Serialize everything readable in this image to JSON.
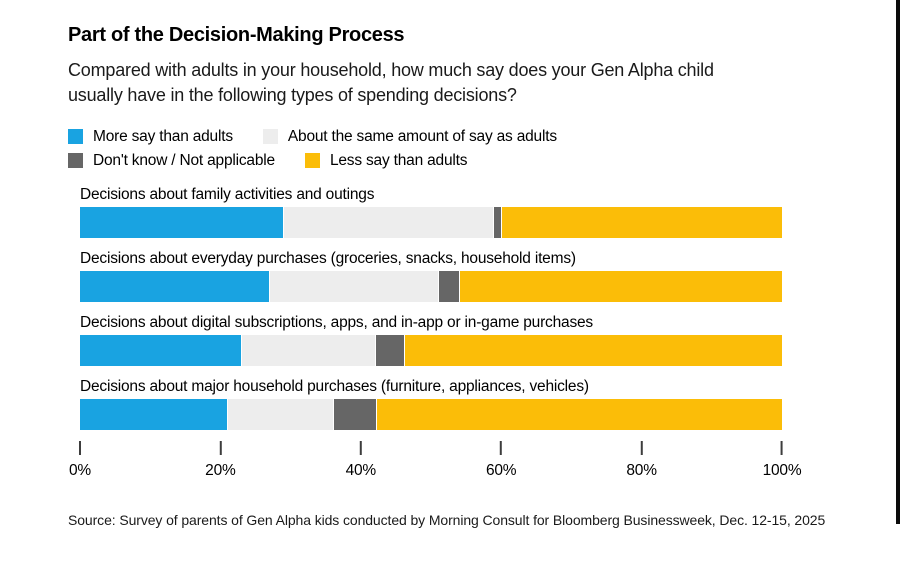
{
  "title": "Part of the Decision-Making Process",
  "subtitle": "Compared with adults in your household, how much say does your Gen Alpha child usually have in the following types of spending decisions?",
  "source": "Source: Survey of parents of Gen Alpha kids conducted by Morning Consult for Bloomberg Businessweek, Dec. 12-15, 2025",
  "colors": {
    "more": "#19a3e1",
    "same": "#ededed",
    "dont_know": "#666666",
    "less": "#fbbd08",
    "tick": "#3d3d3d",
    "text": "#000000",
    "background": "#ffffff"
  },
  "legend": {
    "rows": [
      [
        {
          "label": "More say than adults",
          "color_key": "more"
        },
        {
          "label": "About the same amount of say as adults",
          "color_key": "same"
        }
      ],
      [
        {
          "label": "Don't know / Not applicable",
          "color_key": "dont_know"
        },
        {
          "label": "Less say than adults",
          "color_key": "less"
        }
      ]
    ]
  },
  "chart_data": {
    "type": "bar",
    "stacked": true,
    "orientation": "horizontal",
    "unit": "%",
    "title": "Part of the Decision-Making Process",
    "xlabel": "",
    "ylabel": "",
    "xlim": [
      0,
      100
    ],
    "grid": false,
    "legend_position": "top",
    "categories": [
      "Decisions about family activities and outings",
      "Decisions about everyday purchases (groceries, snacks, household items)",
      "Decisions about digital subscriptions, apps, and in-app or in-game purchases",
      "Decisions about major household purchases (furniture, appliances, vehicles)"
    ],
    "series": [
      {
        "name": "More say than adults",
        "color": "#19a3e1",
        "values": [
          29,
          27,
          23,
          21
        ]
      },
      {
        "name": "About the same amount of say as adults",
        "color": "#ededed",
        "values": [
          30,
          24,
          19,
          15
        ]
      },
      {
        "name": "Don't know / Not applicable",
        "color": "#666666",
        "values": [
          1,
          3,
          4,
          6
        ]
      },
      {
        "name": "Less say than adults",
        "color": "#fbbd08",
        "values": [
          40,
          46,
          54,
          58
        ]
      }
    ],
    "x_ticks": [
      "0%",
      "20%",
      "40%",
      "60%",
      "80%",
      "100%"
    ]
  }
}
